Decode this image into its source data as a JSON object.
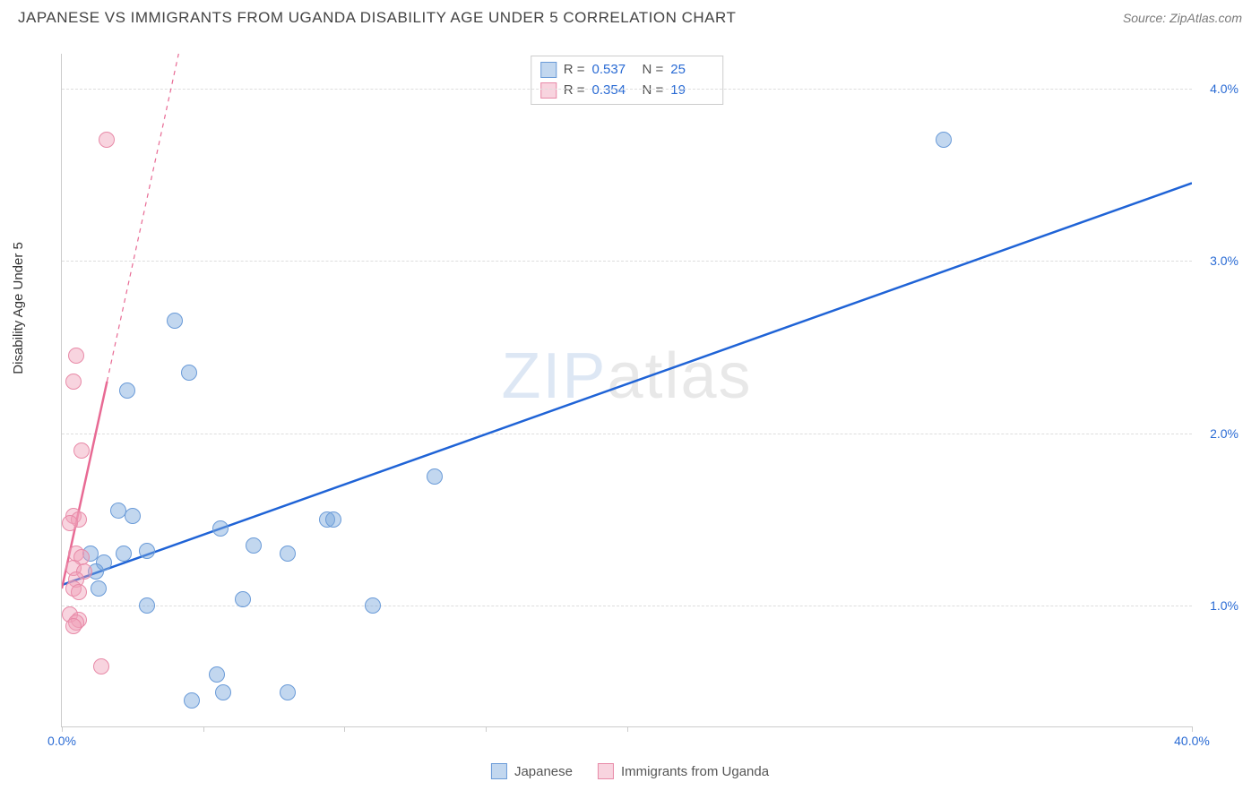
{
  "header": {
    "title": "JAPANESE VS IMMIGRANTS FROM UGANDA DISABILITY AGE UNDER 5 CORRELATION CHART",
    "source_label": "Source: ZipAtlas.com"
  },
  "chart": {
    "type": "scatter",
    "ylabel": "Disability Age Under 5",
    "background_color": "#ffffff",
    "grid_color": "#dddddd",
    "axis_color": "#cccccc",
    "xlim": [
      0,
      40
    ],
    "ylim": [
      0.3,
      4.2
    ],
    "xticks": [
      0,
      5,
      10,
      15,
      20,
      40
    ],
    "xtick_labels": {
      "0": "0.0%",
      "40": "40.0%"
    },
    "xtick_color": "#2a6bd4",
    "yticks": [
      1.0,
      2.0,
      3.0,
      4.0
    ],
    "ytick_labels": {
      "1.0": "1.0%",
      "2.0": "2.0%",
      "3.0": "3.0%",
      "4.0": "4.0%"
    },
    "ytick_color": "#2a6bd4",
    "marker_radius": 9,
    "marker_border_width": 1,
    "series": [
      {
        "name": "Japanese",
        "fill_color": "rgba(120,166,220,0.45)",
        "border_color": "#6a9bd8",
        "trend_color": "#1f63d6",
        "trend_width": 2.5,
        "trend_dashed_extension": false,
        "trend": {
          "x1": 0,
          "y1": 1.12,
          "x2": 40,
          "y2": 3.45
        },
        "points": [
          {
            "x": 31.2,
            "y": 3.7
          },
          {
            "x": 4.0,
            "y": 2.65
          },
          {
            "x": 4.5,
            "y": 2.35
          },
          {
            "x": 2.3,
            "y": 2.25
          },
          {
            "x": 13.2,
            "y": 1.75
          },
          {
            "x": 5.6,
            "y": 1.45
          },
          {
            "x": 9.4,
            "y": 1.5
          },
          {
            "x": 9.6,
            "y": 1.5
          },
          {
            "x": 2.0,
            "y": 1.55
          },
          {
            "x": 2.5,
            "y": 1.52
          },
          {
            "x": 6.8,
            "y": 1.35
          },
          {
            "x": 1.0,
            "y": 1.3
          },
          {
            "x": 1.5,
            "y": 1.25
          },
          {
            "x": 2.2,
            "y": 1.3
          },
          {
            "x": 3.0,
            "y": 1.32
          },
          {
            "x": 8.0,
            "y": 1.3
          },
          {
            "x": 11.0,
            "y": 1.0
          },
          {
            "x": 6.4,
            "y": 1.04
          },
          {
            "x": 3.0,
            "y": 1.0
          },
          {
            "x": 1.2,
            "y": 1.2
          },
          {
            "x": 1.3,
            "y": 1.1
          },
          {
            "x": 5.5,
            "y": 0.6
          },
          {
            "x": 5.7,
            "y": 0.5
          },
          {
            "x": 8.0,
            "y": 0.5
          },
          {
            "x": 4.6,
            "y": 0.45
          }
        ]
      },
      {
        "name": "Immigrants from Uganda",
        "fill_color": "rgba(240,160,185,0.45)",
        "border_color": "#e88aa8",
        "trend_color": "#e86a94",
        "trend_width": 2.5,
        "trend_dashed_extension": true,
        "trend": {
          "x1": 0,
          "y1": 1.1,
          "x2": 1.6,
          "y2": 2.3
        },
        "trend_ext": {
          "x1": 1.6,
          "y1": 2.3,
          "x2": 5.2,
          "y2": 5.0
        },
        "points": [
          {
            "x": 1.6,
            "y": 3.7
          },
          {
            "x": 0.5,
            "y": 2.45
          },
          {
            "x": 0.4,
            "y": 2.3
          },
          {
            "x": 0.7,
            "y": 1.9
          },
          {
            "x": 0.4,
            "y": 1.52
          },
          {
            "x": 0.6,
            "y": 1.5
          },
          {
            "x": 0.3,
            "y": 1.48
          },
          {
            "x": 0.5,
            "y": 1.3
          },
          {
            "x": 0.7,
            "y": 1.28
          },
          {
            "x": 0.4,
            "y": 1.22
          },
          {
            "x": 0.8,
            "y": 1.2
          },
          {
            "x": 0.5,
            "y": 1.15
          },
          {
            "x": 0.4,
            "y": 1.1
          },
          {
            "x": 0.6,
            "y": 1.08
          },
          {
            "x": 0.3,
            "y": 0.95
          },
          {
            "x": 0.6,
            "y": 0.92
          },
          {
            "x": 0.5,
            "y": 0.9
          },
          {
            "x": 0.4,
            "y": 0.88
          },
          {
            "x": 1.4,
            "y": 0.65
          }
        ]
      }
    ],
    "correlation_legend": [
      {
        "swatch_fill": "rgba(120,166,220,0.45)",
        "swatch_border": "#6a9bd8",
        "r_label": "R =",
        "r": "0.537",
        "n_label": "N =",
        "n": "25"
      },
      {
        "swatch_fill": "rgba(240,160,185,0.45)",
        "swatch_border": "#e88aa8",
        "r_label": "R =",
        "r": "0.354",
        "n_label": "N =",
        "n": "19"
      }
    ],
    "bottom_legend": [
      {
        "swatch_fill": "rgba(120,166,220,0.45)",
        "swatch_border": "#6a9bd8",
        "label": "Japanese"
      },
      {
        "swatch_fill": "rgba(240,160,185,0.45)",
        "swatch_border": "#e88aa8",
        "label": "Immigrants from Uganda"
      }
    ],
    "watermark": {
      "zip": "ZIP",
      "atlas": "atlas"
    }
  }
}
